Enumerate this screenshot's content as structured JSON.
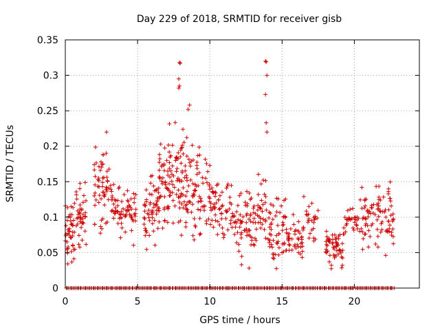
{
  "chart_data": {
    "type": "scatter",
    "title": "Day 229 of 2018, SRMTID for receiver gisb",
    "xlabel": "GPS time / hours",
    "ylabel": "SRMTID / TECUs",
    "xlim": [
      0,
      24.5
    ],
    "ylim": [
      0,
      0.35
    ],
    "x_ticks": [
      0,
      5,
      10,
      15,
      20
    ],
    "x_tick_labels": [
      "0",
      "5",
      "10",
      "15",
      "20"
    ],
    "y_ticks": [
      0,
      0.05,
      0.1,
      0.15,
      0.2,
      0.25,
      0.3,
      0.35
    ],
    "y_tick_labels": [
      "0",
      "0.05",
      "0.1",
      "0.15",
      "0.2",
      "0.25",
      "0.3",
      "0.35"
    ],
    "grid": true,
    "marker": "+",
    "series": [
      {
        "name": "SRMTID",
        "color": "#cc0000",
        "clusters": [
          {
            "x_range": [
              0.0,
              0.7
            ],
            "y_range": [
              0.025,
              0.13
            ],
            "count": 45
          },
          {
            "x_range": [
              0.7,
              1.5
            ],
            "y_range": [
              0.035,
              0.165
            ],
            "count": 40
          },
          {
            "x_range": [
              2.0,
              3.2
            ],
            "y_range": [
              0.06,
              0.22
            ],
            "count": 60
          },
          {
            "x_range": [
              3.2,
              4.9
            ],
            "y_range": [
              0.05,
              0.16
            ],
            "count": 70
          },
          {
            "x_range": [
              5.4,
              6.5
            ],
            "y_range": [
              0.05,
              0.17
            ],
            "count": 60
          },
          {
            "x_range": [
              6.5,
              7.4
            ],
            "y_range": [
              0.045,
              0.255
            ],
            "count": 55
          },
          {
            "x_range": [
              7.4,
              8.3
            ],
            "y_range": [
              0.05,
              0.26
            ],
            "count": 55
          },
          {
            "x_range": [
              8.3,
              9.3
            ],
            "y_range": [
              0.05,
              0.245
            ],
            "count": 55
          },
          {
            "x_range": [
              9.3,
              10.6
            ],
            "y_range": [
              0.06,
              0.19
            ],
            "count": 55
          },
          {
            "x_range": [
              10.6,
              11.5
            ],
            "y_range": [
              0.06,
              0.17
            ],
            "count": 30
          },
          {
            "x_range": [
              11.5,
              13.0
            ],
            "y_range": [
              0.015,
              0.16
            ],
            "count": 60
          },
          {
            "x_range": [
              13.0,
              14.0
            ],
            "y_range": [
              0.04,
              0.175
            ],
            "count": 40
          },
          {
            "x_range": [
              14.0,
              15.3
            ],
            "y_range": [
              0.015,
              0.16
            ],
            "count": 60
          },
          {
            "x_range": [
              15.3,
              16.5
            ],
            "y_range": [
              0.03,
              0.11
            ],
            "count": 45
          },
          {
            "x_range": [
              16.5,
              17.6
            ],
            "y_range": [
              0.04,
              0.14
            ],
            "count": 25
          },
          {
            "x_range": [
              18.0,
              19.2
            ],
            "y_range": [
              0.02,
              0.09
            ],
            "count": 55
          },
          {
            "x_range": [
              19.2,
              20.3
            ],
            "y_range": [
              0.06,
              0.12
            ],
            "count": 30
          },
          {
            "x_range": [
              20.3,
              21.5
            ],
            "y_range": [
              0.04,
              0.165
            ],
            "count": 40
          },
          {
            "x_range": [
              21.5,
              22.7
            ],
            "y_range": [
              0.035,
              0.175
            ],
            "count": 55
          }
        ],
        "outliers": [
          {
            "x": 7.9,
            "y": 0.318
          },
          {
            "x": 7.95,
            "y": 0.317
          },
          {
            "x": 7.85,
            "y": 0.295
          },
          {
            "x": 7.9,
            "y": 0.285
          },
          {
            "x": 7.85,
            "y": 0.282
          },
          {
            "x": 13.85,
            "y": 0.32
          },
          {
            "x": 13.9,
            "y": 0.319
          },
          {
            "x": 13.95,
            "y": 0.3
          },
          {
            "x": 13.85,
            "y": 0.273
          },
          {
            "x": 13.9,
            "y": 0.233
          },
          {
            "x": 13.95,
            "y": 0.22
          },
          {
            "x": 8.6,
            "y": 0.258
          },
          {
            "x": 8.5,
            "y": 0.252
          },
          {
            "x": 2.85,
            "y": 0.22
          }
        ],
        "zero_band": {
          "x_range": [
            0.0,
            22.8
          ],
          "y": 0,
          "count": 230
        }
      }
    ]
  }
}
